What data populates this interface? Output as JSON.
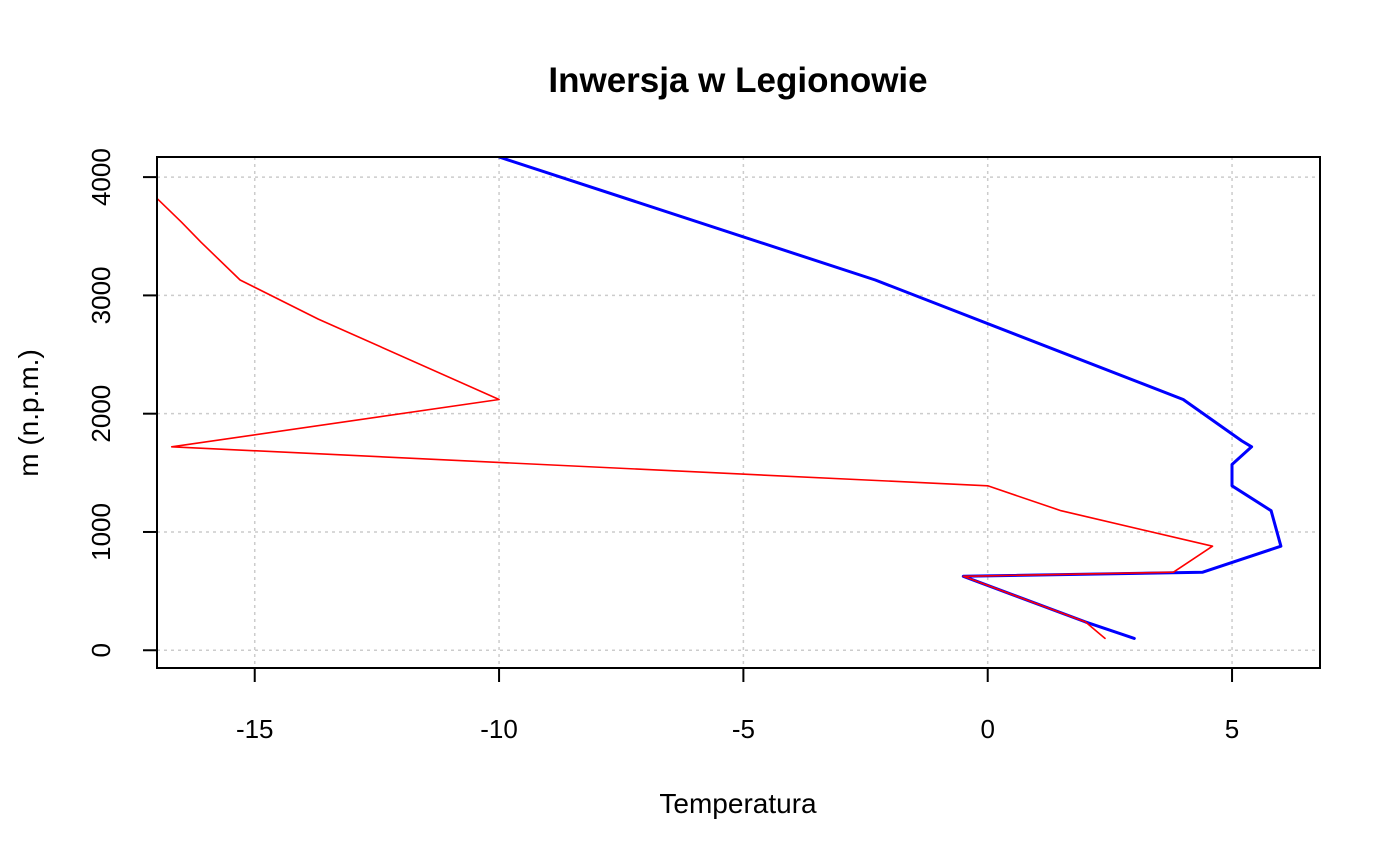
{
  "chart_data": {
    "type": "line",
    "title": "Inwersja w Legionowie",
    "xlabel": "Temperatura",
    "ylabel": "m (n.p.m.)",
    "xlim": [
      -17,
      6.8
    ],
    "ylim": [
      -150,
      4170
    ],
    "x_ticks": [
      -15,
      -10,
      -5,
      0,
      5
    ],
    "x_tick_labels": [
      "-15",
      "-10",
      "-5",
      "0",
      "5"
    ],
    "y_ticks": [
      0,
      1000,
      2000,
      3000,
      4000
    ],
    "y_tick_labels": [
      "0",
      "1000",
      "2000",
      "3000",
      "4000"
    ],
    "grid": true,
    "series": [
      {
        "color": "#0000ff",
        "line_width": 3,
        "points": [
          {
            "x": 3.0,
            "y": 100
          },
          {
            "x": 2.0,
            "y": 240
          },
          {
            "x": -0.5,
            "y": 625
          },
          {
            "x": 4.4,
            "y": 660
          },
          {
            "x": 6.0,
            "y": 880
          },
          {
            "x": 5.8,
            "y": 1180
          },
          {
            "x": 5.0,
            "y": 1390
          },
          {
            "x": 5.0,
            "y": 1570
          },
          {
            "x": 5.4,
            "y": 1720
          },
          {
            "x": 5.2,
            "y": 1770
          },
          {
            "x": 4.0,
            "y": 2120
          },
          {
            "x": -2.3,
            "y": 3130
          },
          {
            "x": -10.0,
            "y": 4170
          }
        ]
      },
      {
        "color": "#ff0000",
        "line_width": 1.6,
        "points": [
          {
            "x": 2.4,
            "y": 100
          },
          {
            "x": 2.0,
            "y": 240
          },
          {
            "x": -0.5,
            "y": 625
          },
          {
            "x": 3.8,
            "y": 660
          },
          {
            "x": 4.6,
            "y": 880
          },
          {
            "x": 1.5,
            "y": 1180
          },
          {
            "x": 0.0,
            "y": 1390
          },
          {
            "x": -16.7,
            "y": 1720
          },
          {
            "x": -10.0,
            "y": 2120
          },
          {
            "x": -13.7,
            "y": 2800
          },
          {
            "x": -15.3,
            "y": 3130
          },
          {
            "x": -16.1,
            "y": 3450
          },
          {
            "x": -16.5,
            "y": 3620
          },
          {
            "x": -17.0,
            "y": 3820
          }
        ]
      }
    ]
  }
}
